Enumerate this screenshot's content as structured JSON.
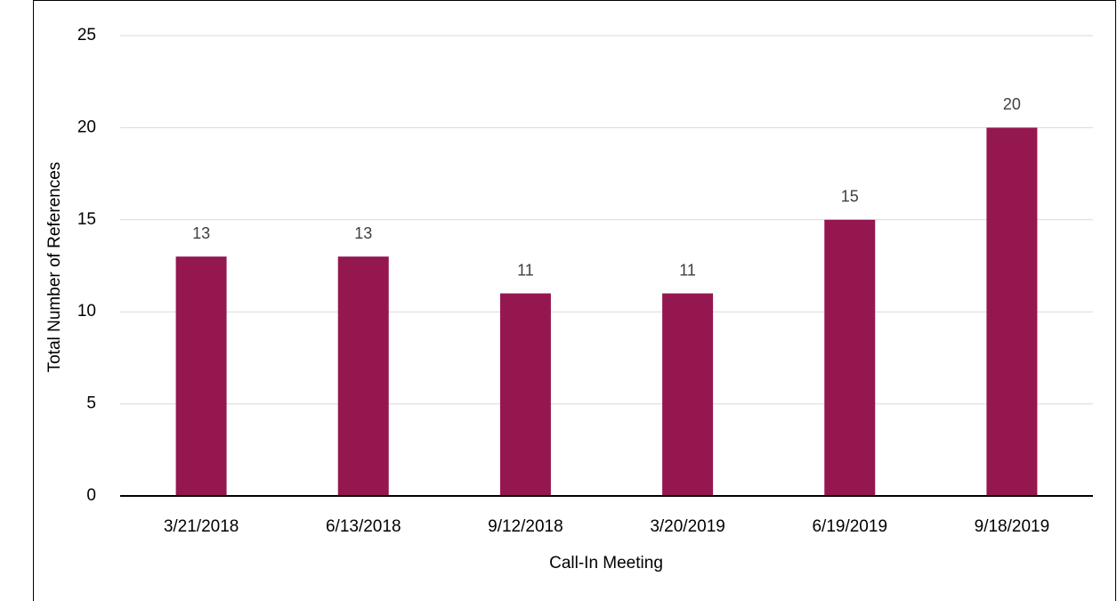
{
  "chart_data": {
    "type": "bar",
    "x_label": "Call-In Meeting",
    "y_label": "Total Number of References",
    "categories": [
      "3/21/2018",
      "6/13/2018",
      "9/12/2018",
      "3/20/2019",
      "6/19/2019",
      "9/18/2019"
    ],
    "values": [
      13,
      13,
      11,
      11,
      15,
      20
    ],
    "color": "#951750",
    "ylim": [
      0,
      25
    ],
    "yticks": [
      0,
      5,
      10,
      15,
      20,
      25
    ],
    "grid": true
  }
}
